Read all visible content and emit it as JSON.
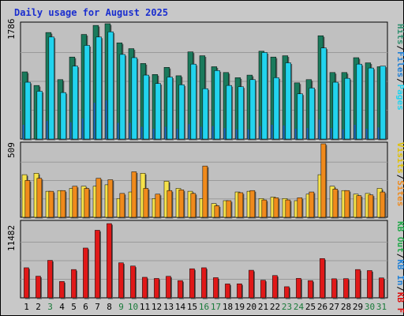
{
  "chart_data": {
    "type": "bar",
    "title": "Daily usage for August 2025",
    "categories": [
      "1",
      "2",
      "3",
      "4",
      "5",
      "6",
      "7",
      "8",
      "9",
      "10",
      "11",
      "12",
      "13",
      "14",
      "15",
      "16",
      "17",
      "18",
      "19",
      "20",
      "21",
      "22",
      "23",
      "24",
      "25",
      "26",
      "27",
      "28",
      "29",
      "30",
      "31"
    ],
    "weekend_days": [
      "3",
      "9",
      "10",
      "16",
      "17",
      "23",
      "24",
      "30",
      "31"
    ],
    "panels": [
      {
        "id": "top",
        "max_label": "1786",
        "ylim": [
          0,
          1786
        ],
        "right_labels": [
          {
            "text": "Hits",
            "color": "#2f8f6f"
          },
          {
            "text": "Files",
            "color": "#1e7fd6"
          },
          {
            "text": "Pages",
            "color": "#22d3ee"
          }
        ],
        "series": [
          {
            "name": "Hits",
            "color": "#1a7a5c",
            "values": [
              1040,
              830,
              1650,
              920,
              1270,
              1620,
              1760,
              1786,
              1490,
              1400,
              1170,
              1000,
              1110,
              980,
              1350,
              1290,
              1120,
              1030,
              950,
              990,
              1360,
              1270,
              1290,
              870,
              920,
              1600,
              1030,
              1030,
              1260,
              1180,
              1120
            ]
          },
          {
            "name": "Files",
            "color": "#22d3ee",
            "values": [
              880,
              740,
              1580,
              720,
              1130,
              1450,
              1580,
              1660,
              1310,
              1260,
              990,
              860,
              960,
              840,
              1160,
              780,
              1060,
              830,
              810,
              920,
              1340,
              950,
              1180,
              700,
              790,
              1410,
              880,
              940,
              1160,
              1100,
              1130
            ]
          },
          {
            "name": "Pages",
            "color": "#1e5fb8",
            "values": [
              220,
              0,
              280,
              0,
              260,
              320,
              560,
              600,
              250,
              250,
              190,
              160,
              190,
              160,
              230,
              190,
              200,
              170,
              150,
              150,
              200,
              220,
              210,
              160,
              170,
              300,
              170,
              150,
              220,
              160,
              180
            ]
          }
        ]
      },
      {
        "id": "middle",
        "max_label": "509",
        "ylim": [
          0,
          509
        ],
        "right_labels": [
          {
            "text": "Visits",
            "color": "#e0c000"
          },
          {
            "text": "Sites",
            "color": "#f08a1c"
          }
        ],
        "series": [
          {
            "name": "Visits",
            "color": "#f6e24a",
            "values": [
              295,
              305,
              180,
              185,
              200,
              215,
              215,
              225,
              130,
              175,
              305,
              130,
              250,
              200,
              180,
              130,
              95,
              115,
              175,
              180,
              130,
              140,
              130,
              115,
              160,
              295,
              215,
              185,
              160,
              165,
              200
            ]
          },
          {
            "name": "Sites",
            "color": "#f08a1c",
            "values": [
              255,
              270,
              180,
              185,
              215,
              200,
              270,
              260,
              165,
              315,
              200,
              160,
              185,
              190,
              165,
              355,
              80,
              115,
              170,
              185,
              120,
              135,
              120,
              135,
              175,
              509,
              195,
              185,
              150,
              155,
              175
            ]
          }
        ]
      },
      {
        "id": "bottom",
        "max_label": "11482",
        "ylim": [
          0,
          11482
        ],
        "right_labels": [
          {
            "text": "KB Out",
            "color": "#22a84a"
          },
          {
            "text": "KB In",
            "color": "#1e7fd6"
          },
          {
            "text": "KB F",
            "color": "#dd1111"
          }
        ],
        "series": [
          {
            "name": "KB F",
            "color": "#e01818",
            "values": [
              4650,
              3350,
              5800,
              2530,
              4380,
              7700,
              10450,
              11482,
              5420,
              4920,
              3180,
              3000,
              3330,
              2670,
              4500,
              4650,
              3120,
              2150,
              2170,
              4270,
              2730,
              3450,
              1720,
              3010,
              2670,
              6080,
              2950,
              2970,
              4380,
              4220,
              3080
            ]
          }
        ]
      }
    ]
  }
}
